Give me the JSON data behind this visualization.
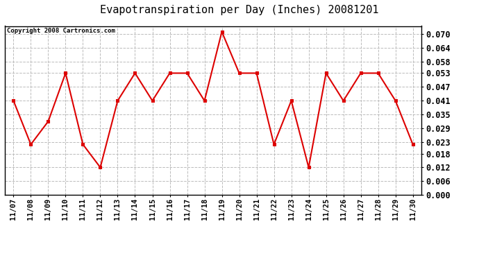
{
  "title": "Evapotranspiration per Day (Inches) 20081201",
  "copyright_text": "Copyright 2008 Cartronics.com",
  "x_labels": [
    "11/07",
    "11/08",
    "11/09",
    "11/10",
    "11/11",
    "11/12",
    "11/13",
    "11/14",
    "11/15",
    "11/16",
    "11/17",
    "11/18",
    "11/19",
    "11/20",
    "11/21",
    "11/22",
    "11/23",
    "11/24",
    "11/25",
    "11/26",
    "11/27",
    "11/28",
    "11/29",
    "11/30"
  ],
  "y_values": [
    0.041,
    0.022,
    0.032,
    0.053,
    0.022,
    0.012,
    0.041,
    0.053,
    0.041,
    0.053,
    0.053,
    0.041,
    0.071,
    0.053,
    0.053,
    0.022,
    0.041,
    0.012,
    0.053,
    0.041,
    0.053,
    0.053,
    0.041,
    0.022
  ],
  "ylim": [
    0.0,
    0.0735
  ],
  "yticks": [
    0.0,
    0.006,
    0.012,
    0.018,
    0.023,
    0.029,
    0.035,
    0.041,
    0.047,
    0.053,
    0.058,
    0.064,
    0.07
  ],
  "line_color": "#dd0000",
  "marker": "s",
  "marker_size": 3.5,
  "marker_color": "#dd0000",
  "background_color": "#ffffff",
  "plot_bg_color": "#ffffff",
  "grid_color": "#bbbbbb",
  "title_fontsize": 11,
  "copyright_fontsize": 6.5,
  "tick_fontsize": 7.5,
  "ytick_fontsize": 8.5
}
